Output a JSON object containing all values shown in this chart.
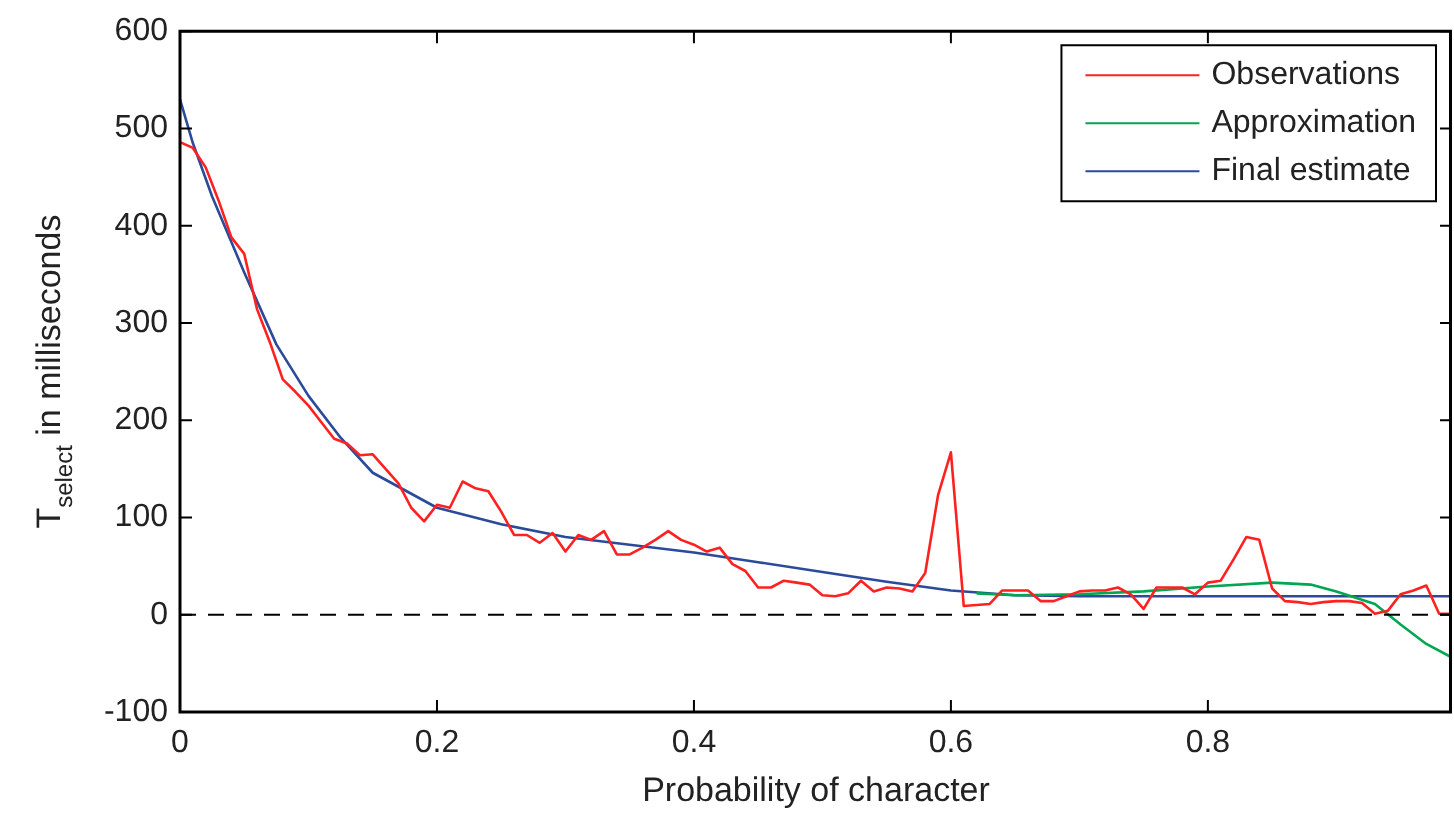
{
  "chart_data": {
    "type": "line",
    "xlabel": "Probability of character",
    "ylabel": "T$_{select}$ in milliseconds",
    "xlim": [
      0,
      0.99
    ],
    "ylim": [
      -100,
      600
    ],
    "xticks": [
      0,
      0.2,
      0.4,
      0.6,
      0.8
    ],
    "yticks": [
      -100,
      0,
      100,
      200,
      300,
      400,
      500,
      600
    ],
    "legend": "top right",
    "marker": "none",
    "line_style": "solid",
    "ref_lines": [
      {
        "axis": "y",
        "value": 0,
        "color": "#000000",
        "line_style": "dashed"
      }
    ],
    "series": [
      {
        "name": "Observations",
        "color": "#ff2020",
        "x": [
          0,
          0.01,
          0.02,
          0.03,
          0.04,
          0.05,
          0.06,
          0.07,
          0.08,
          0.09,
          0.1,
          0.11,
          0.12,
          0.13,
          0.14,
          0.15,
          0.16,
          0.17,
          0.18,
          0.19,
          0.2,
          0.21,
          0.22,
          0.23,
          0.24,
          0.25,
          0.26,
          0.27,
          0.28,
          0.29,
          0.3,
          0.31,
          0.32,
          0.33,
          0.34,
          0.35,
          0.36,
          0.37,
          0.38,
          0.39,
          0.4,
          0.41,
          0.42,
          0.43,
          0.44,
          0.45,
          0.46,
          0.47,
          0.48,
          0.49,
          0.5,
          0.51,
          0.52,
          0.53,
          0.54,
          0.55,
          0.56,
          0.57,
          0.58,
          0.59,
          0.6,
          0.61,
          0.62,
          0.63,
          0.64,
          0.65,
          0.66,
          0.67,
          0.68,
          0.69,
          0.7,
          0.71,
          0.72,
          0.73,
          0.74,
          0.75,
          0.76,
          0.77,
          0.78,
          0.79,
          0.8,
          0.81,
          0.82,
          0.83,
          0.84,
          0.85,
          0.86,
          0.87,
          0.88,
          0.89,
          0.9,
          0.91,
          0.92,
          0.93,
          0.94,
          0.95,
          0.96,
          0.97,
          0.98,
          0.99
        ],
        "values": [
          486,
          480,
          460,
          426,
          388,
          371,
          314,
          280,
          242,
          229,
          215,
          198,
          181,
          176,
          164,
          165,
          150,
          135,
          110,
          96,
          113,
          110,
          137,
          130,
          127,
          106,
          82,
          82,
          74,
          84,
          65,
          82,
          77,
          86,
          62,
          62,
          69,
          77,
          86,
          77,
          72,
          65,
          69,
          52,
          45,
          28,
          28,
          35,
          33,
          31,
          20,
          19,
          22,
          35,
          24,
          28,
          27,
          24,
          43,
          123,
          167,
          9,
          10,
          11,
          25,
          25,
          25,
          14,
          14,
          19,
          24,
          25,
          25,
          28,
          21,
          6,
          28,
          28,
          28,
          21,
          33,
          35,
          57,
          80,
          77,
          27,
          14,
          13,
          11,
          13,
          14,
          14,
          12,
          1,
          4,
          21,
          25,
          30,
          1,
          1
        ]
      },
      {
        "name": "Approximation",
        "color": "#00a651",
        "x": [
          0.62,
          0.65,
          0.7,
          0.75,
          0.8,
          0.85,
          0.88,
          0.9,
          0.93,
          0.95,
          0.97,
          0.99
        ],
        "values": [
          22,
          20,
          21,
          24,
          29,
          33,
          31,
          24,
          11,
          -10,
          -30,
          -44
        ]
      },
      {
        "name": "Final estimate",
        "color": "#2b4a9a",
        "x": [
          0,
          0.01,
          0.025,
          0.05,
          0.075,
          0.1,
          0.125,
          0.15,
          0.2,
          0.25,
          0.3,
          0.35,
          0.4,
          0.45,
          0.5,
          0.55,
          0.6,
          0.65,
          0.7,
          0.99
        ],
        "values": [
          530,
          485,
          430,
          352,
          278,
          225,
          182,
          146,
          110,
          93,
          80,
          72,
          64,
          54,
          44,
          34,
          25,
          20,
          19,
          19
        ]
      }
    ]
  }
}
